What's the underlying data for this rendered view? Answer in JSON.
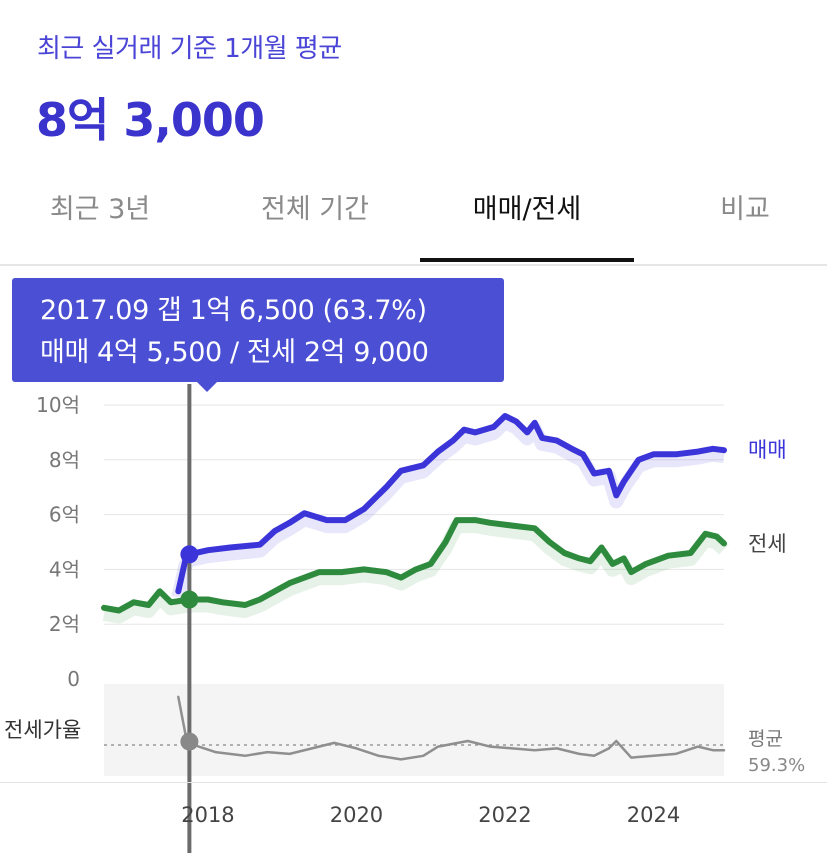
{
  "header": {
    "subtitle": "최근 실거래 기준 1개월 평균",
    "price": "8억 3,000"
  },
  "tabs": [
    {
      "label": "최근 3년",
      "active": false
    },
    {
      "label": "전체 기간",
      "active": false
    },
    {
      "label": "매매/전세",
      "active": true
    },
    {
      "label": "비교",
      "active": false
    }
  ],
  "tooltip": {
    "line1": "2017.09  갭 1억 6,500 (63.7%)",
    "line2": "매매 4억 5,500 / 전세 2억 9,000",
    "date": "2017.09",
    "gap_eok": 1.65,
    "gap_pct": 63.7,
    "sale_eok": 4.55,
    "jeonse_eok": 2.9
  },
  "ratio_panel": {
    "label": "전세가율",
    "avg_label": "평균",
    "avg_value": "59.3%",
    "avg_pct": 59.3
  },
  "colors": {
    "sale": "#3b35d9",
    "jeonse": "#2e8b3e",
    "ratio": "#8f8f8f",
    "tooltip_bg": "#4b4fd3"
  },
  "chart_data": {
    "type": "line",
    "x_ticks": [
      "2018",
      "2020",
      "2022",
      "2024"
    ],
    "y_ticks": [
      "0",
      "2억",
      "4억",
      "6억",
      "8억",
      "10억"
    ],
    "ylim": [
      0,
      10
    ],
    "y_unit": "억",
    "series": [
      {
        "name": "매매",
        "points": [
          [
            2017.6,
            3.2
          ],
          [
            2017.7,
            4.4
          ],
          [
            2017.75,
            4.55
          ],
          [
            2018.0,
            4.7
          ],
          [
            2018.3,
            4.8
          ],
          [
            2018.7,
            4.9
          ],
          [
            2018.9,
            5.4
          ],
          [
            2019.1,
            5.7
          ],
          [
            2019.3,
            6.05
          ],
          [
            2019.6,
            5.8
          ],
          [
            2019.85,
            5.8
          ],
          [
            2020.1,
            6.2
          ],
          [
            2020.4,
            7.0
          ],
          [
            2020.6,
            7.6
          ],
          [
            2020.9,
            7.8
          ],
          [
            2021.1,
            8.3
          ],
          [
            2021.3,
            8.7
          ],
          [
            2021.45,
            9.1
          ],
          [
            2021.6,
            9.0
          ],
          [
            2021.85,
            9.2
          ],
          [
            2022.0,
            9.6
          ],
          [
            2022.15,
            9.4
          ],
          [
            2022.3,
            9.0
          ],
          [
            2022.4,
            9.35
          ],
          [
            2022.5,
            8.8
          ],
          [
            2022.7,
            8.7
          ],
          [
            2022.9,
            8.4
          ],
          [
            2023.05,
            8.2
          ],
          [
            2023.2,
            7.5
          ],
          [
            2023.4,
            7.6
          ],
          [
            2023.5,
            6.7
          ],
          [
            2023.6,
            7.2
          ],
          [
            2023.8,
            8.0
          ],
          [
            2024.0,
            8.2
          ],
          [
            2024.3,
            8.2
          ],
          [
            2024.6,
            8.3
          ],
          [
            2024.8,
            8.4
          ],
          [
            2024.95,
            8.35
          ]
        ]
      },
      {
        "name": "전세",
        "points": [
          [
            2016.6,
            2.6
          ],
          [
            2016.8,
            2.5
          ],
          [
            2017.0,
            2.8
          ],
          [
            2017.2,
            2.7
          ],
          [
            2017.35,
            3.2
          ],
          [
            2017.5,
            2.8
          ],
          [
            2017.75,
            2.9
          ],
          [
            2018.0,
            2.9
          ],
          [
            2018.2,
            2.8
          ],
          [
            2018.5,
            2.7
          ],
          [
            2018.7,
            2.9
          ],
          [
            2018.9,
            3.2
          ],
          [
            2019.1,
            3.5
          ],
          [
            2019.3,
            3.7
          ],
          [
            2019.5,
            3.9
          ],
          [
            2019.8,
            3.9
          ],
          [
            2020.1,
            4.0
          ],
          [
            2020.4,
            3.9
          ],
          [
            2020.6,
            3.7
          ],
          [
            2020.8,
            4.0
          ],
          [
            2021.0,
            4.2
          ],
          [
            2021.2,
            5.0
          ],
          [
            2021.35,
            5.8
          ],
          [
            2021.6,
            5.8
          ],
          [
            2021.8,
            5.7
          ],
          [
            2022.1,
            5.6
          ],
          [
            2022.4,
            5.5
          ],
          [
            2022.6,
            5.0
          ],
          [
            2022.8,
            4.6
          ],
          [
            2023.0,
            4.4
          ],
          [
            2023.15,
            4.3
          ],
          [
            2023.3,
            4.8
          ],
          [
            2023.45,
            4.2
          ],
          [
            2023.6,
            4.4
          ],
          [
            2023.7,
            3.9
          ],
          [
            2023.9,
            4.2
          ],
          [
            2024.2,
            4.5
          ],
          [
            2024.5,
            4.6
          ],
          [
            2024.7,
            5.3
          ],
          [
            2024.85,
            5.2
          ],
          [
            2024.95,
            4.95
          ]
        ]
      },
      {
        "name": "전세가율",
        "points": [
          [
            2017.6,
            0.88
          ],
          [
            2017.7,
            0.67
          ],
          [
            2017.8,
            0.62
          ],
          [
            2018.1,
            0.58
          ],
          [
            2018.5,
            0.56
          ],
          [
            2018.8,
            0.58
          ],
          [
            2019.1,
            0.57
          ],
          [
            2019.4,
            0.6
          ],
          [
            2019.7,
            0.63
          ],
          [
            2020.0,
            0.6
          ],
          [
            2020.3,
            0.56
          ],
          [
            2020.6,
            0.54
          ],
          [
            2020.9,
            0.56
          ],
          [
            2021.1,
            0.61
          ],
          [
            2021.5,
            0.64
          ],
          [
            2021.8,
            0.61
          ],
          [
            2022.1,
            0.6
          ],
          [
            2022.4,
            0.59
          ],
          [
            2022.7,
            0.6
          ],
          [
            2023.0,
            0.57
          ],
          [
            2023.2,
            0.56
          ],
          [
            2023.4,
            0.6
          ],
          [
            2023.5,
            0.64
          ],
          [
            2023.7,
            0.55
          ],
          [
            2024.0,
            0.56
          ],
          [
            2024.3,
            0.57
          ],
          [
            2024.6,
            0.61
          ],
          [
            2024.8,
            0.59
          ],
          [
            2024.95,
            0.59
          ]
        ]
      }
    ],
    "cursor": {
      "x": 2017.75,
      "sale": 4.55,
      "jeonse": 2.9,
      "ratio": 0.637
    },
    "grid": true
  }
}
